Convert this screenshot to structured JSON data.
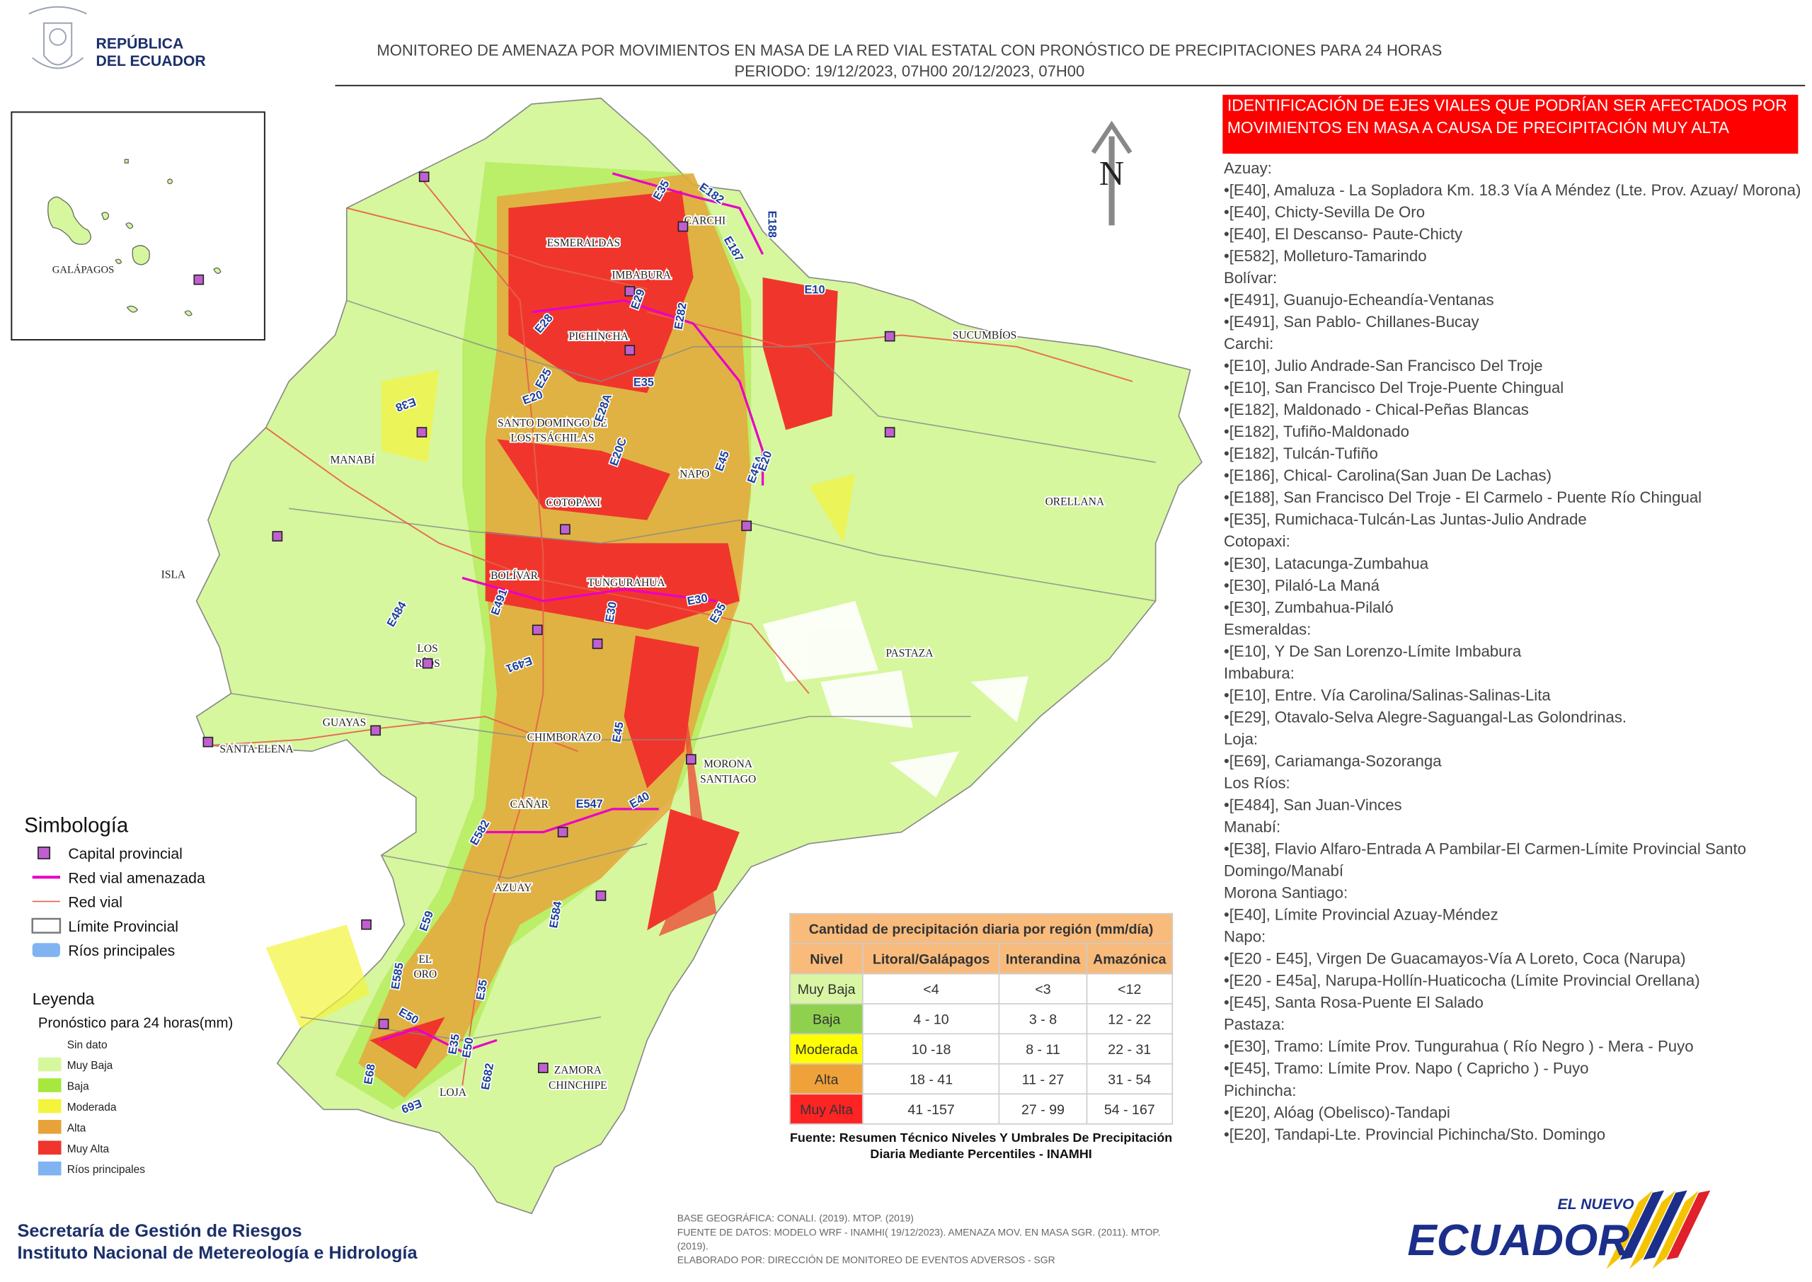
{
  "header": {
    "country": [
      "REPÚBLICA",
      "DEL ECUADOR"
    ],
    "title": "MONITOREO DE AMENAZA POR MOVIMIENTOS EN MASA DE LA RED VIAL  ESTATAL  CON PRONÓSTICO  DE  PRECIPITACIONES PARA 24 HORAS",
    "period": "PERIODO: 19/12/2023, 07H00 20/12/2023, 07H00"
  },
  "map": {
    "north": "N",
    "inset_label": "GALÁPAGOS",
    "provinces": [
      "ESMERALDAS",
      "CARCHI",
      "IMBABURA",
      "PICHINCHA",
      "SUCUMBÍOS",
      "MANABÍ",
      "SANTO DOMINGO DE",
      "LOS TSÁCHILAS",
      "NAPO",
      "ORELLANA",
      "COTOPAXI",
      "ISLA",
      "BOLÍVAR",
      "TUNGURAHUA",
      "LOS",
      "RÍOS",
      "PASTAZA",
      "GUAYAS",
      "SANTA ELENA",
      "CHIMBORAZO",
      "MORONA",
      "SANTIAGO",
      "CAÑAR",
      "AZUAY",
      "EL",
      "ORO",
      "LOJA",
      "ZAMORA",
      "CHINCHIPE"
    ],
    "roads": [
      "E10",
      "E182",
      "E187",
      "E188",
      "E35",
      "E28",
      "E29",
      "E282",
      "E25",
      "E20",
      "E28A",
      "E20C",
      "E35",
      "E45",
      "E45A",
      "E20",
      "E30",
      "E35",
      "E491",
      "E484",
      "E491",
      "E30",
      "E45",
      "E547",
      "E40",
      "E582",
      "E59",
      "E585",
      "E35",
      "E50",
      "E35",
      "E50",
      "E682",
      "E68",
      "E69",
      "E584",
      "E38"
    ]
  },
  "symbology": {
    "title": "Simbología",
    "items": [
      "Capital provincial",
      "Red vial amenazada",
      "Red vial",
      "Límite Provincial",
      "Ríos principales"
    ]
  },
  "legend": {
    "title": "Leyenda",
    "subtitle": "Pronóstico para 24 horas(mm)",
    "items": [
      {
        "label": "Sin dato",
        "color": "#ffffff"
      },
      {
        "label": "Muy Baja",
        "color": "#d6f79e"
      },
      {
        "label": "Baja",
        "color": "#a6e83e"
      },
      {
        "label": "Moderada",
        "color": "#f4f43c"
      },
      {
        "label": "Alta",
        "color": "#e8a23a"
      },
      {
        "label": "Muy Alta",
        "color": "#f0362c"
      },
      {
        "label": "Ríos principales",
        "color": "#7fb3f2"
      }
    ]
  },
  "table": {
    "title": "Cantidad de precipitación diaria por región (mm/día)",
    "headers": [
      "Nivel",
      "Litoral/Galápagos",
      "Interandina",
      "Amazónica"
    ],
    "rows": [
      [
        "Muy Baja",
        "<4",
        "<3",
        "<12"
      ],
      [
        "Baja",
        "4 - 10",
        "3 - 8",
        "12 - 22"
      ],
      [
        "Moderada",
        "10 -18",
        "8 - 11",
        "22 - 31"
      ],
      [
        "Alta",
        "18 - 41",
        "11 - 27",
        "31 - 54"
      ],
      [
        "Muy Alta",
        "41 -157",
        "27 - 99",
        "54 - 167"
      ]
    ],
    "row_colors": [
      "#d8f6a4",
      "#8fd14f",
      "#ffff00",
      "#f0a23a",
      "#ff2424"
    ],
    "source": "Fuente: Resumen Técnico Niveles Y Umbrales De Precipitación Diaria Mediante Percentiles - INAMHI"
  },
  "panel": {
    "heading": "IDENTIFICACIÓN DE EJES VIALES QUE PODRÍAN SER AFECTADOS POR MOVIMIENTOS EN MASA A CAUSA DE PRECIPITACIÓN MUY ALTA",
    "groups": [
      {
        "province": "Azuay:",
        "roads": [
          "•[E40], Amaluza - La Sopladora Km. 18.3 Vía A Méndez (Lte. Prov. Azuay/ Morona)",
          "•[E40], Chicty-Sevilla De Oro",
          "•[E40], El Descanso- Paute-Chicty",
          "•[E582], Molleturo-Tamarindo"
        ]
      },
      {
        "province": "Bolívar:",
        "roads": [
          "•[E491], Guanujo-Echeandía-Ventanas",
          "•[E491], San Pablo- Chillanes-Bucay"
        ]
      },
      {
        "province": "Carchi:",
        "roads": [
          "•[E10], Julio Andrade-San Francisco Del Troje",
          "•[E10], San Francisco Del Troje-Puente Chingual",
          "•[E182], Maldonado - Chical-Peñas Blancas",
          "•[E182], Tufiño-Maldonado",
          "•[E182], Tulcán-Tufiño",
          "•[E186], Chical- Carolina(San Juan De Lachas)",
          "•[E188], San Francisco Del Troje - El Carmelo - Puente Río Chingual",
          "•[E35], Rumichaca-Tulcán-Las Juntas-Julio Andrade"
        ]
      },
      {
        "province": "Cotopaxi:",
        "roads": [
          "•[E30], Latacunga-Zumbahua",
          "•[E30], Pilaló-La Maná",
          "•[E30], Zumbahua-Pilaló"
        ]
      },
      {
        "province": "Esmeraldas:",
        "roads": [
          "•[E10], Y De San Lorenzo-Límite Imbabura"
        ]
      },
      {
        "province": "Imbabura:",
        "roads": [
          "•[E10], Entre. Vía Carolina/Salinas-Salinas-Lita",
          "•[E29], Otavalo-Selva Alegre-Saguangal-Las Golondrinas."
        ]
      },
      {
        "province": "Loja:",
        "roads": [
          "•[E69], Cariamanga-Sozoranga"
        ]
      },
      {
        "province": "Los Ríos:",
        "roads": [
          "•[E484], San Juan-Vinces"
        ]
      },
      {
        "province": "Manabí:",
        "roads": [
          "•[E38], Flavio Alfaro-Entrada A Pambilar-El Carmen-Límite Provincial Santo Domingo/Manabí"
        ]
      },
      {
        "province": "Morona Santiago:",
        "roads": [
          "•[E40], Límite Provincial Azuay-Méndez"
        ]
      },
      {
        "province": "Napo:",
        "roads": [
          "•[E20 - E45], Virgen De Guacamayos-Vía A Loreto, Coca (Narupa)",
          "•[E20 - E45a], Narupa-Hollín-Huaticocha (Límite Provincial Orellana)",
          "•[E45], Santa Rosa-Puente El Salado"
        ]
      },
      {
        "province": "Pastaza:",
        "roads": [
          "•[E30], Tramo: Límite Prov. Tungurahua ( Río Negro ) - Mera - Puyo",
          "•[E45], Tramo: Límite Prov. Napo ( Capricho ) - Puyo"
        ]
      },
      {
        "province": "Pichincha:",
        "roads": [
          "•[E20], Alóag (Obelisco)-Tandapi",
          "•[E20], Tandapi-Lte. Provincial Pichincha/Sto. Domingo"
        ]
      }
    ]
  },
  "footer": {
    "org": [
      "Secretaría de Gestión de Riesgos",
      "Instituto Nacional de Metereología e Hidrología"
    ],
    "notes": [
      "BASE GEOGRÁFICA: CONALI. (2019). MTOP. (2019)",
      "FUENTE DE DATOS: MODELO WRF - INAMHI( 19/12/2023).  AMENAZA MOV. EN MASA SGR. (2011). MTOP. (2019).",
      "ELABORADO POR: DIRECCIÓN DE MONITOREO DE EVENTOS ADVERSOS - SGR"
    ],
    "brand": [
      "EL NUEVO",
      "ECUADOR"
    ]
  }
}
